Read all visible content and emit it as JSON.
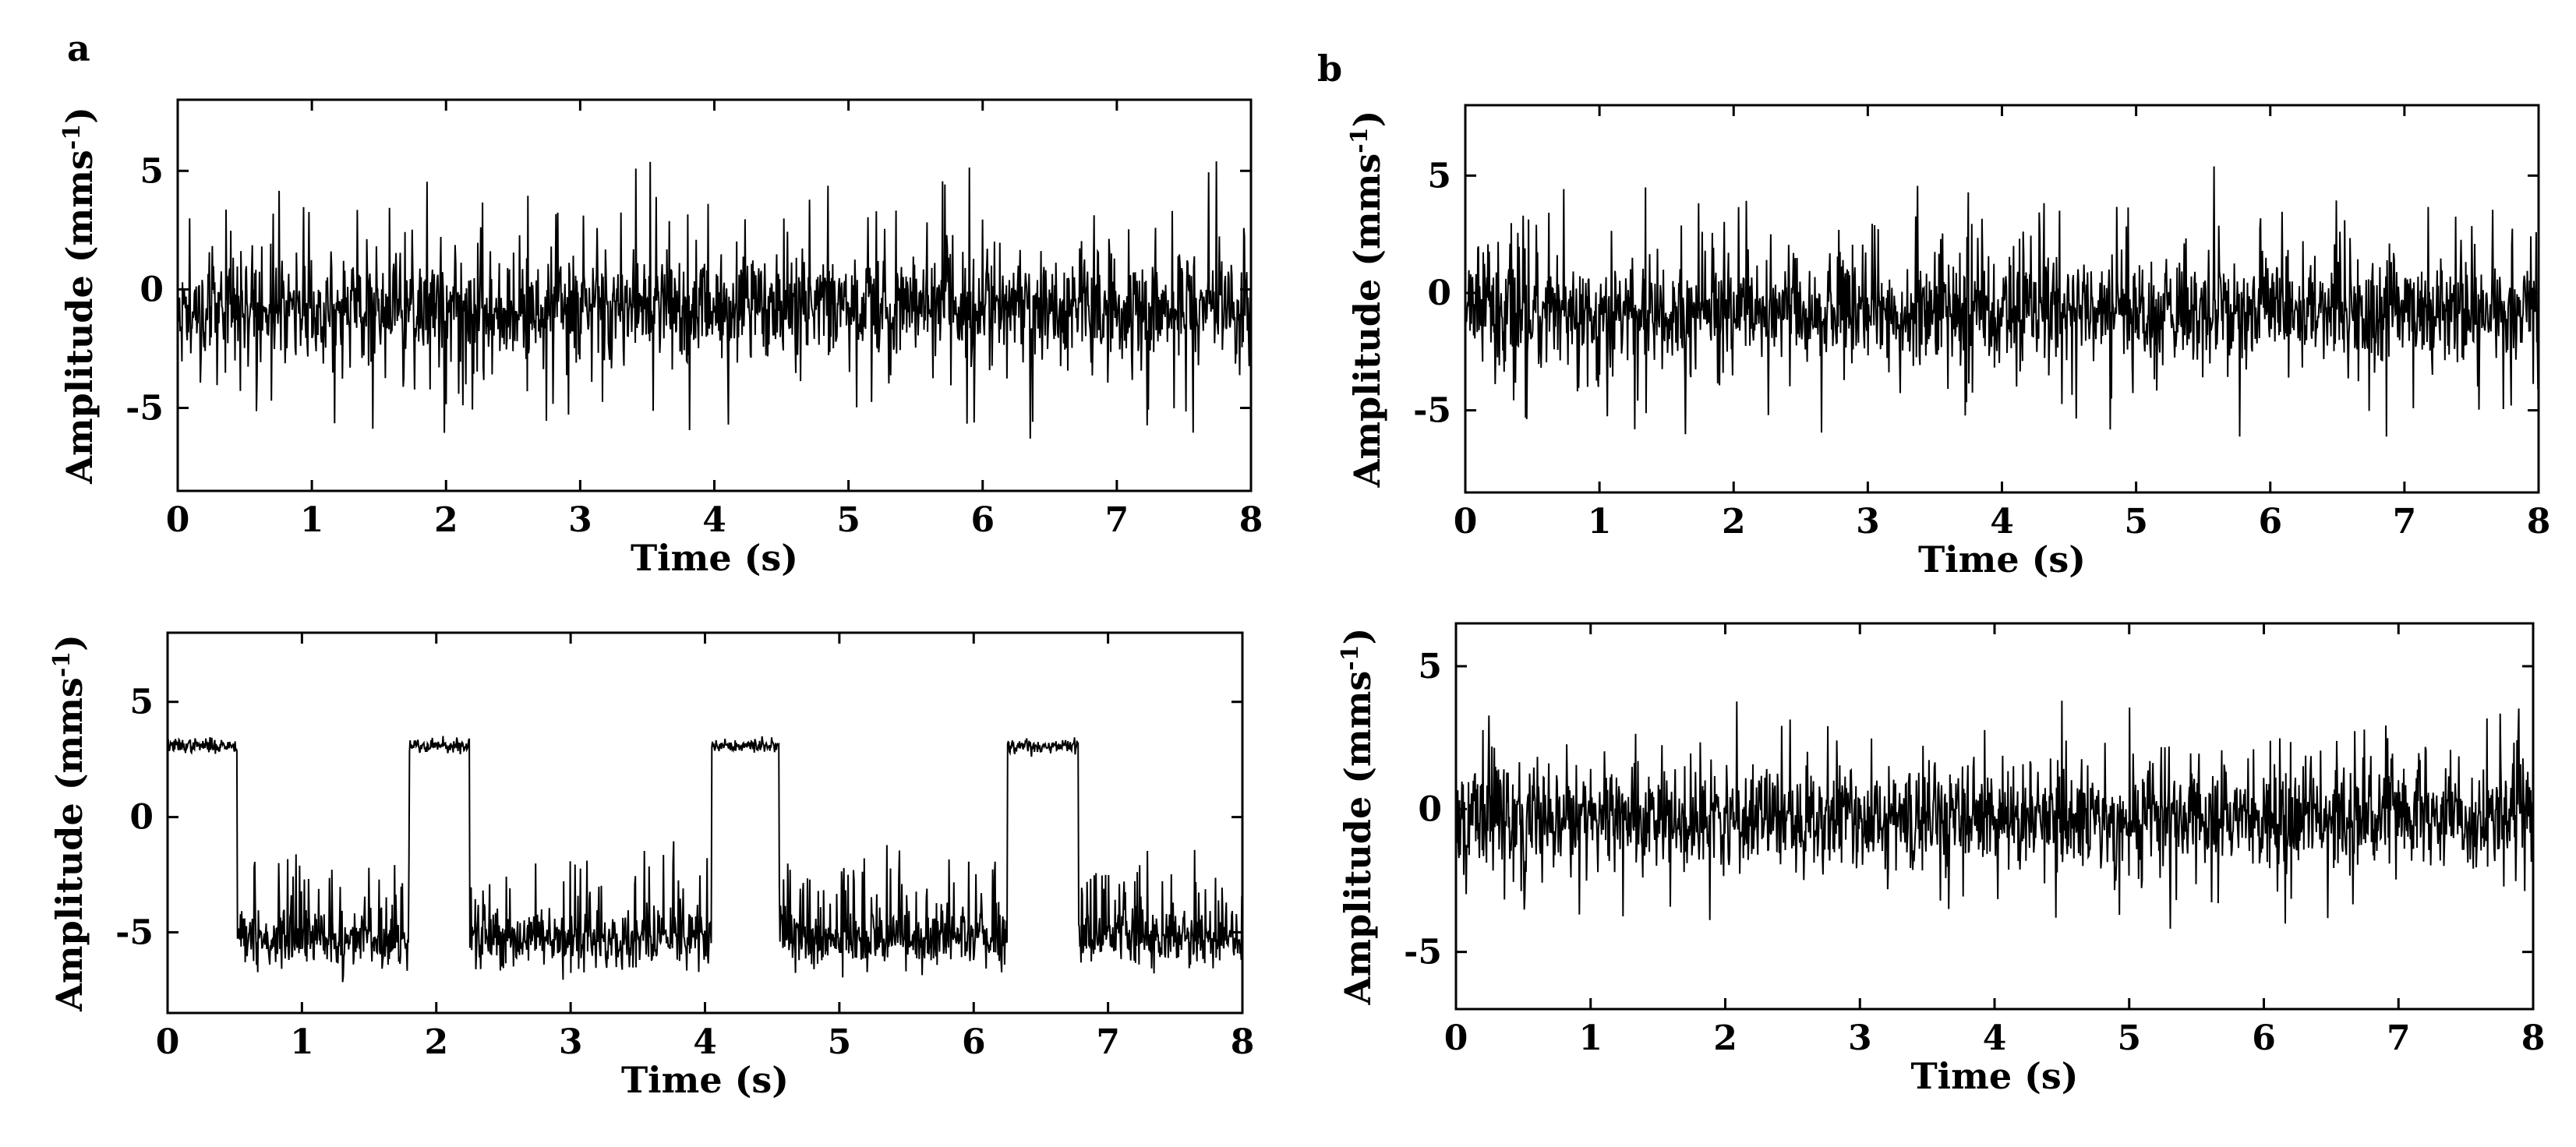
{
  "figure": {
    "panel_labels": [
      "a",
      "b"
    ]
  },
  "chart_data": [
    {
      "type": "line",
      "panel": "a",
      "position": "top",
      "description": "noisy signal fluctuating around -1 with occasional spikes",
      "xlabel": "Time (s)",
      "ylabel": "Amplitude (mms-1)",
      "ylabel_main": "Amplitude (mms",
      "ylabel_sup": "-1",
      "ylabel_close": ")",
      "xlim": [
        0,
        8
      ],
      "ylim": [
        -8.5,
        8
      ],
      "xticks": [
        0,
        1,
        2,
        3,
        4,
        5,
        6,
        7,
        8
      ],
      "yticks": [
        -5,
        0,
        5
      ],
      "grid": false,
      "series": [
        {
          "color": "#000000",
          "generator": {
            "kind": "noise",
            "mean": -0.8,
            "std": 1.1,
            "spike_prob": 0.08,
            "spike_mag": 3.5,
            "seed": 11,
            "samples": 1800
          }
        }
      ]
    },
    {
      "type": "line",
      "panel": "b",
      "position": "top",
      "description": "noisy signal fluctuating around -1 with occasional spikes",
      "xlabel": "Time (s)",
      "ylabel": "Amplitude (mms-1)",
      "ylabel_main": "Amplitude (mms",
      "ylabel_sup": "-1",
      "ylabel_close": ")",
      "xlim": [
        0,
        8
      ],
      "ylim": [
        -8.5,
        8
      ],
      "xticks": [
        0,
        1,
        2,
        3,
        4,
        5,
        6,
        7,
        8
      ],
      "yticks": [
        -5,
        0,
        5
      ],
      "grid": false,
      "series": [
        {
          "color": "#000000",
          "generator": {
            "kind": "noise",
            "mean": -0.8,
            "std": 1.1,
            "spike_prob": 0.08,
            "spike_mag": 3.5,
            "seed": 23,
            "samples": 1800
          }
        }
      ]
    },
    {
      "type": "line",
      "panel": "a",
      "position": "bottom",
      "description": "signal switching between a high level near 3 and a noisy low level near -5.5",
      "xlabel": "Time (s)",
      "ylabel": "Amplitude (mms-1)",
      "ylabel_main": "Amplitude (mms",
      "ylabel_sup": "-1",
      "ylabel_close": ")",
      "xlim": [
        0,
        8
      ],
      "ylim": [
        -8.5,
        8
      ],
      "xticks": [
        0,
        1,
        2,
        3,
        4,
        5,
        6,
        7,
        8
      ],
      "yticks": [
        -5,
        0,
        5
      ],
      "grid": false,
      "levels": {
        "high": 3.1,
        "low": -5.3,
        "high_intervals": [
          [
            0.0,
            0.52
          ],
          [
            1.8,
            2.25
          ],
          [
            4.05,
            4.55
          ],
          [
            6.25,
            6.78
          ]
        ]
      },
      "series": [
        {
          "color": "#000000",
          "generator": {
            "kind": "telegraph",
            "high_std": 0.15,
            "low_std": 0.6,
            "low_spike_prob": 0.12,
            "low_spike_mag": 2.8,
            "seed": 37,
            "samples": 1800
          }
        }
      ]
    },
    {
      "type": "line",
      "panel": "b",
      "position": "bottom",
      "description": "noisy signal fluctuating around 0 with occasional spikes",
      "xlabel": "Time (s)",
      "ylabel": "Amplitude (mms-1)",
      "ylabel_main": "Amplitude (mms",
      "ylabel_sup": "-1",
      "ylabel_close": ")",
      "xlim": [
        0,
        8
      ],
      "ylim": [
        -7,
        6.5
      ],
      "xticks": [
        0,
        1,
        2,
        3,
        4,
        5,
        6,
        7,
        8
      ],
      "yticks": [
        -5,
        0,
        5
      ],
      "grid": false,
      "series": [
        {
          "color": "#000000",
          "generator": {
            "kind": "noise",
            "mean": -0.3,
            "std": 0.9,
            "spike_prob": 0.07,
            "spike_mag": 2.6,
            "seed": 51,
            "samples": 1800
          }
        }
      ]
    }
  ]
}
